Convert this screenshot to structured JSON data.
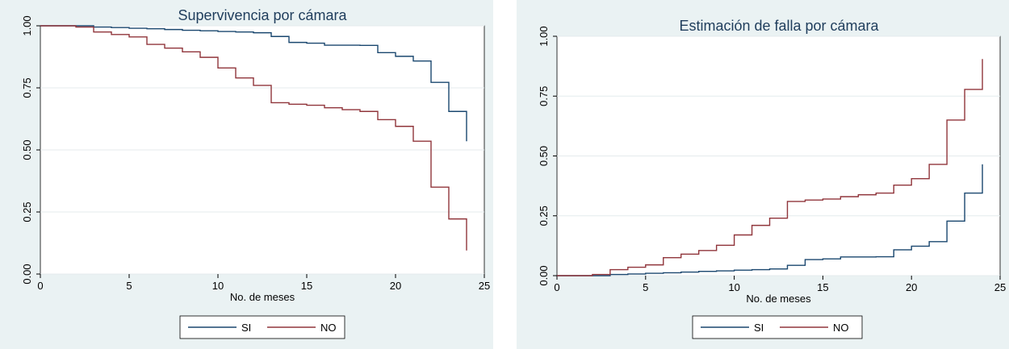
{
  "chart_data": [
    {
      "type": "line",
      "title": "Supervivencia por cámara",
      "xlabel": "No. de meses",
      "ylabel": "",
      "xlim": [
        0,
        25
      ],
      "ylim": [
        0,
        1
      ],
      "xticks": [
        "0",
        "5",
        "10",
        "15",
        "20",
        "25"
      ],
      "yticks": [
        "0.00",
        "0.25",
        "0.50",
        "0.75",
        "1.00"
      ],
      "grid": true,
      "legend_position": "bottom",
      "series": [
        {
          "name": "SI",
          "color": "#1a476f",
          "x": [
            0,
            3,
            4,
            5,
            6,
            7,
            8,
            9,
            10,
            11,
            12,
            13,
            14,
            15,
            16,
            17,
            18,
            19,
            20,
            21,
            22,
            23,
            24
          ],
          "y": [
            1.0,
            0.995,
            0.993,
            0.99,
            0.988,
            0.985,
            0.982,
            0.98,
            0.977,
            0.975,
            0.972,
            0.957,
            0.933,
            0.93,
            0.922,
            0.922,
            0.921,
            0.892,
            0.877,
            0.858,
            0.772,
            0.655,
            0.535
          ]
        },
        {
          "name": "NO",
          "color": "#90353b",
          "x": [
            0,
            2,
            3,
            4,
            5,
            6,
            7,
            8,
            9,
            10,
            11,
            12,
            13,
            14,
            15,
            16,
            17,
            18,
            19,
            20,
            21,
            22,
            23,
            24
          ],
          "y": [
            1.0,
            0.995,
            0.975,
            0.965,
            0.955,
            0.925,
            0.91,
            0.895,
            0.873,
            0.83,
            0.79,
            0.76,
            0.69,
            0.684,
            0.68,
            0.67,
            0.662,
            0.655,
            0.622,
            0.595,
            0.535,
            0.35,
            0.222,
            0.095
          ]
        }
      ]
    },
    {
      "type": "line",
      "title": "Estimación de falla por cámara",
      "xlabel": "No. de meses",
      "ylabel": "",
      "xlim": [
        0,
        25
      ],
      "ylim": [
        0,
        1
      ],
      "xticks": [
        "0",
        "5",
        "10",
        "15",
        "20",
        "25"
      ],
      "yticks": [
        "0.00",
        "0.25",
        "0.50",
        "0.75",
        "1.00"
      ],
      "grid": true,
      "legend_position": "bottom",
      "series": [
        {
          "name": "SI",
          "color": "#1a476f",
          "x": [
            0,
            3,
            4,
            5,
            6,
            7,
            8,
            9,
            10,
            11,
            12,
            13,
            14,
            15,
            16,
            17,
            18,
            19,
            20,
            21,
            22,
            23,
            24
          ],
          "y": [
            0.0,
            0.005,
            0.007,
            0.01,
            0.012,
            0.015,
            0.018,
            0.02,
            0.023,
            0.025,
            0.028,
            0.043,
            0.067,
            0.07,
            0.078,
            0.078,
            0.079,
            0.108,
            0.123,
            0.142,
            0.228,
            0.345,
            0.465
          ]
        },
        {
          "name": "NO",
          "color": "#90353b",
          "x": [
            0,
            2,
            3,
            4,
            5,
            6,
            7,
            8,
            9,
            10,
            11,
            12,
            13,
            14,
            15,
            16,
            17,
            18,
            19,
            20,
            21,
            22,
            23,
            24
          ],
          "y": [
            0.0,
            0.005,
            0.025,
            0.035,
            0.045,
            0.075,
            0.09,
            0.105,
            0.127,
            0.17,
            0.21,
            0.24,
            0.31,
            0.316,
            0.32,
            0.33,
            0.338,
            0.345,
            0.378,
            0.405,
            0.465,
            0.65,
            0.778,
            0.905
          ]
        }
      ]
    }
  ]
}
